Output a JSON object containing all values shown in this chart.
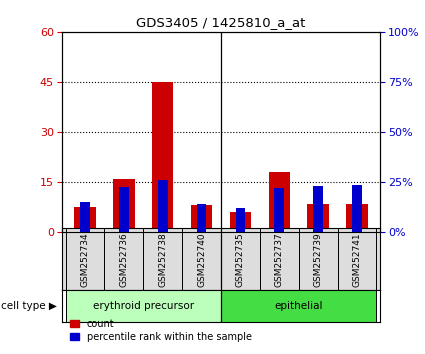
{
  "title": "GDS3405 / 1425810_a_at",
  "samples": [
    "GSM252734",
    "GSM252736",
    "GSM252738",
    "GSM252740",
    "GSM252735",
    "GSM252737",
    "GSM252739",
    "GSM252741"
  ],
  "count_values": [
    7.5,
    16.0,
    45.0,
    8.0,
    6.0,
    18.0,
    8.5,
    8.5
  ],
  "percentile_values": [
    15.0,
    22.5,
    26.0,
    14.0,
    12.0,
    22.0,
    23.0,
    23.5
  ],
  "count_color": "#cc0000",
  "percentile_color": "#0000cc",
  "ylim_left": [
    0,
    60
  ],
  "ylim_right": [
    0,
    100
  ],
  "yticks_left": [
    0,
    15,
    30,
    45,
    60
  ],
  "yticks_right": [
    0,
    25,
    50,
    75,
    100
  ],
  "ytick_labels_right": [
    "0%",
    "25%",
    "50%",
    "75%",
    "100%"
  ],
  "cell_types": [
    {
      "label": "erythroid precursor",
      "span": [
        0,
        4
      ],
      "color": "#bbffbb"
    },
    {
      "label": "epithelial",
      "span": [
        4,
        8
      ],
      "color": "#44dd44"
    }
  ],
  "cell_type_label": "cell type",
  "legend_count": "count",
  "legend_percentile": "percentile rank within the sample",
  "bar_width": 0.55,
  "pct_bar_width": 0.25,
  "separator_index": 4,
  "background_color": "#ffffff",
  "plot_bg_color": "#ffffff",
  "grid_color": "#000000",
  "tick_color_left": "#cc0000",
  "tick_color_right": "#0000cc",
  "sample_box_color": "#dddddd",
  "cell_type_bg": "#ccffcc"
}
